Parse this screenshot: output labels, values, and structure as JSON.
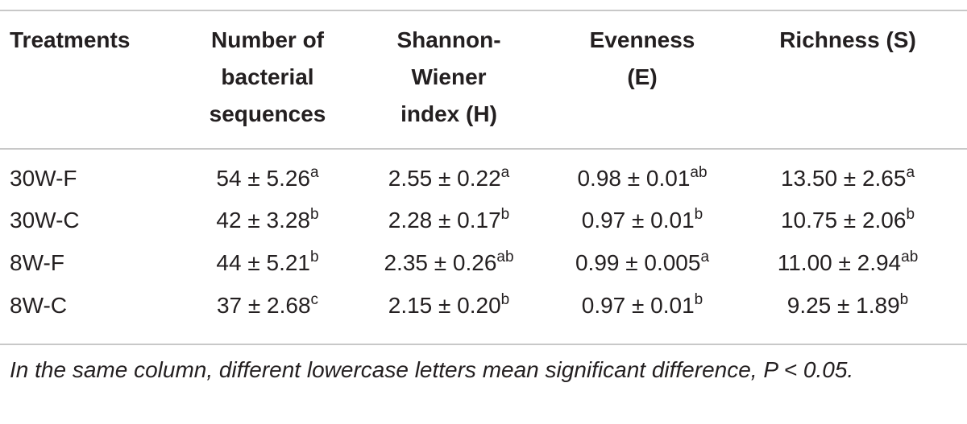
{
  "table": {
    "header": [
      [
        "Treatments"
      ],
      [
        "Number of",
        "bacterial",
        "sequences"
      ],
      [
        "Shannon-",
        "Wiener",
        "index (H)"
      ],
      [
        "Evenness",
        "(E)"
      ],
      [
        "Richness (S)"
      ]
    ],
    "rows": [
      [
        "30W-F",
        {
          "text": "54 ± 5.26",
          "sup": "a"
        },
        {
          "text": "2.55 ± 0.22",
          "sup": "a"
        },
        {
          "text": "0.98 ± 0.01",
          "sup": "ab"
        },
        {
          "text": "13.50 ± 2.65",
          "sup": "a"
        }
      ],
      [
        "30W-C",
        {
          "text": "42 ± 3.28",
          "sup": "b"
        },
        {
          "text": "2.28 ± 0.17",
          "sup": "b"
        },
        {
          "text": "0.97 ± 0.01",
          "sup": "b"
        },
        {
          "text": "10.75 ± 2.06",
          "sup": "b"
        }
      ],
      [
        "8W-F",
        {
          "text": "44 ± 5.21",
          "sup": "b"
        },
        {
          "text": "2.35 ± 0.26",
          "sup": "ab"
        },
        {
          "text": "0.99 ± 0.005",
          "sup": "a"
        },
        {
          "text": "11.00 ± 2.94",
          "sup": "ab"
        }
      ],
      [
        "8W-C",
        {
          "text": "37 ± 2.68",
          "sup": "c"
        },
        {
          "text": "2.15 ± 0.20",
          "sup": "b"
        },
        {
          "text": "0.97 ± 0.01",
          "sup": "b"
        },
        {
          "text": "9.25 ± 1.89",
          "sup": "b"
        }
      ]
    ]
  },
  "footnote": "In the same column, different lowercase letters mean significant difference, P < 0.05."
}
